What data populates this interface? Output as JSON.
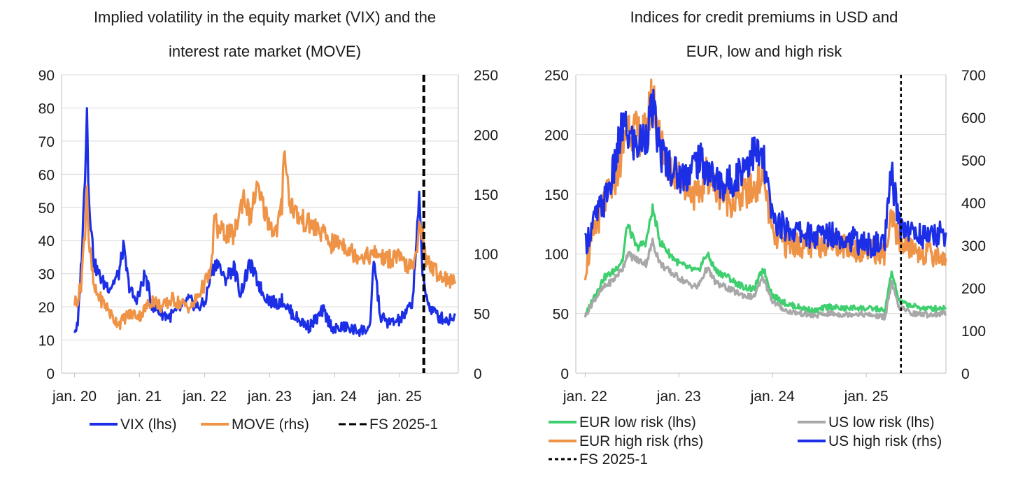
{
  "chart_data": [
    {
      "type": "line",
      "title_line1": "Implied volatility in the equity market (VIX) and the",
      "title_line2": "interest rate market (MOVE)",
      "x_ticks": [
        "jan. 20",
        "jan. 21",
        "jan. 22",
        "jan. 23",
        "jan. 24",
        "jan. 25"
      ],
      "x_range": [
        "2020-01",
        "2025-11"
      ],
      "y_left": {
        "ticks": [
          "0",
          "10",
          "20",
          "30",
          "40",
          "50",
          "60",
          "70",
          "80",
          "90"
        ],
        "ylim": [
          0,
          90
        ]
      },
      "y_right": {
        "ticks": [
          "0",
          "50",
          "100",
          "150",
          "200",
          "250"
        ],
        "ylim": [
          0,
          250
        ]
      },
      "grid": true,
      "legend_position": "bottom",
      "series": [
        {
          "name": "VIX (lhs)",
          "axis": "left",
          "color": "#1c2fe6",
          "x": [
            2020.0,
            2020.05,
            2020.12,
            2020.16,
            2020.19,
            2020.21,
            2020.25,
            2020.3,
            2020.37,
            2020.45,
            2020.55,
            2020.68,
            2020.75,
            2020.83,
            2020.92,
            2021.0,
            2021.08,
            2021.2,
            2021.35,
            2021.45,
            2021.6,
            2021.75,
            2021.9,
            2022.0,
            2022.1,
            2022.2,
            2022.3,
            2022.45,
            2022.55,
            2022.7,
            2022.78,
            2022.9,
            2023.0,
            2023.1,
            2023.2,
            2023.3,
            2023.45,
            2023.6,
            2023.75,
            2023.82,
            2023.9,
            2024.0,
            2024.15,
            2024.3,
            2024.45,
            2024.55,
            2024.6,
            2024.7,
            2024.85,
            2025.0,
            2025.1,
            2025.2,
            2025.27,
            2025.3,
            2025.35,
            2025.45,
            2025.6,
            2025.75,
            2025.85
          ],
          "y": [
            13,
            14,
            40,
            60,
            82,
            58,
            45,
            33,
            30,
            27,
            26,
            30,
            38,
            27,
            22,
            24,
            30,
            20,
            18,
            17,
            19,
            22,
            20,
            21,
            30,
            34,
            28,
            32,
            24,
            33,
            29,
            24,
            22,
            21,
            22,
            19,
            16,
            14,
            17,
            19,
            16,
            13,
            14,
            13,
            13,
            14,
            35,
            17,
            15,
            16,
            18,
            22,
            45,
            52,
            30,
            20,
            17,
            16,
            18
          ]
        },
        {
          "name": "MOVE (rhs)",
          "axis": "right",
          "color": "#ef9347",
          "x": [
            2020.0,
            2020.05,
            2020.1,
            2020.16,
            2020.19,
            2020.22,
            2020.3,
            2020.4,
            2020.5,
            2020.6,
            2020.7,
            2020.8,
            2020.9,
            2021.0,
            2021.1,
            2021.2,
            2021.35,
            2021.5,
            2021.65,
            2021.8,
            2021.95,
            2022.05,
            2022.1,
            2022.15,
            2022.2,
            2022.3,
            2022.45,
            2022.6,
            2022.7,
            2022.8,
            2022.9,
            2023.0,
            2023.1,
            2023.19,
            2023.22,
            2023.3,
            2023.45,
            2023.6,
            2023.75,
            2023.85,
            2023.95,
            2024.1,
            2024.3,
            2024.5,
            2024.65,
            2024.8,
            2024.95,
            2025.1,
            2025.2,
            2025.27,
            2025.3,
            2025.4,
            2025.55,
            2025.7,
            2025.85
          ],
          "y": [
            60,
            62,
            75,
            120,
            160,
            110,
            70,
            62,
            55,
            45,
            42,
            48,
            50,
            48,
            55,
            62,
            55,
            62,
            58,
            55,
            70,
            80,
            85,
            130,
            120,
            118,
            115,
            150,
            130,
            155,
            140,
            125,
            118,
            140,
            195,
            145,
            130,
            125,
            120,
            115,
            108,
            110,
            100,
            98,
            100,
            95,
            98,
            90,
            88,
            100,
            135,
            95,
            85,
            80,
            75
          ]
        },
        {
          "name": "FS 2025-1",
          "type": "vline",
          "x": 2025.37,
          "color": "#000000",
          "dash": "dashed"
        }
      ]
    },
    {
      "type": "line",
      "title_line1": "Indices for credit premiums in USD and",
      "title_line2": "EUR, low and high risk",
      "x_ticks": [
        "jan. 22",
        "jan. 23",
        "jan. 24",
        "jan. 25"
      ],
      "x_range": [
        "2022-01",
        "2025-11"
      ],
      "y_left": {
        "ticks": [
          "0",
          "50",
          "100",
          "150",
          "200",
          "250"
        ],
        "ylim": [
          0,
          250
        ]
      },
      "y_right": {
        "ticks": [
          "0",
          "100",
          "200",
          "300",
          "400",
          "500",
          "600",
          "700"
        ],
        "ylim": [
          0,
          700
        ]
      },
      "grid": true,
      "legend_position": "bottom",
      "series": [
        {
          "name": "EUR low risk (lhs)",
          "axis": "left",
          "color": "#3fcf6e",
          "x": [
            2022.0,
            2022.1,
            2022.2,
            2022.3,
            2022.4,
            2022.45,
            2022.55,
            2022.65,
            2022.72,
            2022.8,
            2022.9,
            2023.0,
            2023.1,
            2023.2,
            2023.3,
            2023.4,
            2023.5,
            2023.6,
            2023.7,
            2023.8,
            2023.9,
            2024.0,
            2024.15,
            2024.3,
            2024.45,
            2024.6,
            2024.75,
            2024.9,
            2025.0,
            2025.1,
            2025.2,
            2025.27,
            2025.35,
            2025.5,
            2025.65,
            2025.85
          ],
          "y": [
            48,
            65,
            80,
            85,
            95,
            125,
            105,
            110,
            138,
            110,
            100,
            92,
            88,
            85,
            100,
            85,
            82,
            76,
            72,
            70,
            88,
            65,
            58,
            55,
            52,
            56,
            54,
            55,
            54,
            54,
            52,
            85,
            60,
            56,
            54,
            55
          ]
        },
        {
          "name": "US low risk (lhs)",
          "axis": "left",
          "color": "#a8a8a8",
          "x": [
            2022.0,
            2022.1,
            2022.2,
            2022.3,
            2022.4,
            2022.45,
            2022.55,
            2022.65,
            2022.72,
            2022.8,
            2022.9,
            2023.0,
            2023.1,
            2023.2,
            2023.3,
            2023.4,
            2023.5,
            2023.6,
            2023.7,
            2023.8,
            2023.9,
            2024.0,
            2024.15,
            2024.3,
            2024.45,
            2024.6,
            2024.75,
            2024.9,
            2025.0,
            2025.1,
            2025.2,
            2025.27,
            2025.35,
            2025.5,
            2025.65,
            2025.85
          ],
          "y": [
            48,
            62,
            72,
            78,
            88,
            100,
            95,
            92,
            110,
            92,
            85,
            80,
            75,
            72,
            88,
            75,
            72,
            68,
            65,
            64,
            80,
            60,
            52,
            50,
            48,
            50,
            49,
            50,
            49,
            48,
            47,
            75,
            55,
            50,
            49,
            50
          ]
        },
        {
          "name": "EUR high risk (rhs)",
          "axis": "right",
          "color": "#ef9347",
          "x": [
            2022.0,
            2022.1,
            2022.2,
            2022.3,
            2022.4,
            2022.45,
            2022.55,
            2022.65,
            2022.72,
            2022.8,
            2022.9,
            2023.0,
            2023.1,
            2023.2,
            2023.3,
            2023.4,
            2023.5,
            2023.6,
            2023.7,
            2023.8,
            2023.9,
            2024.0,
            2024.15,
            2024.3,
            2024.45,
            2024.6,
            2024.75,
            2024.9,
            2025.0,
            2025.1,
            2025.2,
            2025.27,
            2025.35,
            2025.5,
            2025.65,
            2025.85
          ],
          "y": [
            240,
            330,
            400,
            440,
            520,
            590,
            560,
            560,
            670,
            540,
            480,
            460,
            440,
            410,
            470,
            430,
            410,
            400,
            420,
            430,
            470,
            320,
            300,
            300,
            295,
            310,
            300,
            290,
            290,
            285,
            280,
            360,
            310,
            290,
            280,
            270
          ]
        },
        {
          "name": "US high risk (rhs)",
          "axis": "right",
          "color": "#1c2fe6",
          "x": [
            2022.0,
            2022.1,
            2022.2,
            2022.3,
            2022.4,
            2022.45,
            2022.55,
            2022.65,
            2022.72,
            2022.8,
            2022.9,
            2023.0,
            2023.1,
            2023.2,
            2023.3,
            2023.4,
            2023.5,
            2023.6,
            2023.7,
            2023.8,
            2023.9,
            2024.0,
            2024.15,
            2024.3,
            2024.45,
            2024.6,
            2024.75,
            2024.9,
            2025.0,
            2025.1,
            2025.2,
            2025.27,
            2025.35,
            2025.5,
            2025.65,
            2025.85
          ],
          "y": [
            300,
            360,
            400,
            470,
            580,
            560,
            530,
            560,
            620,
            520,
            490,
            460,
            470,
            500,
            480,
            450,
            440,
            460,
            490,
            520,
            500,
            360,
            340,
            330,
            320,
            330,
            320,
            310,
            300,
            300,
            310,
            470,
            350,
            330,
            320,
            330
          ]
        },
        {
          "name": "FS 2025-1",
          "type": "vline",
          "x": 2025.37,
          "color": "#000000",
          "dash": "dotted"
        }
      ]
    }
  ]
}
